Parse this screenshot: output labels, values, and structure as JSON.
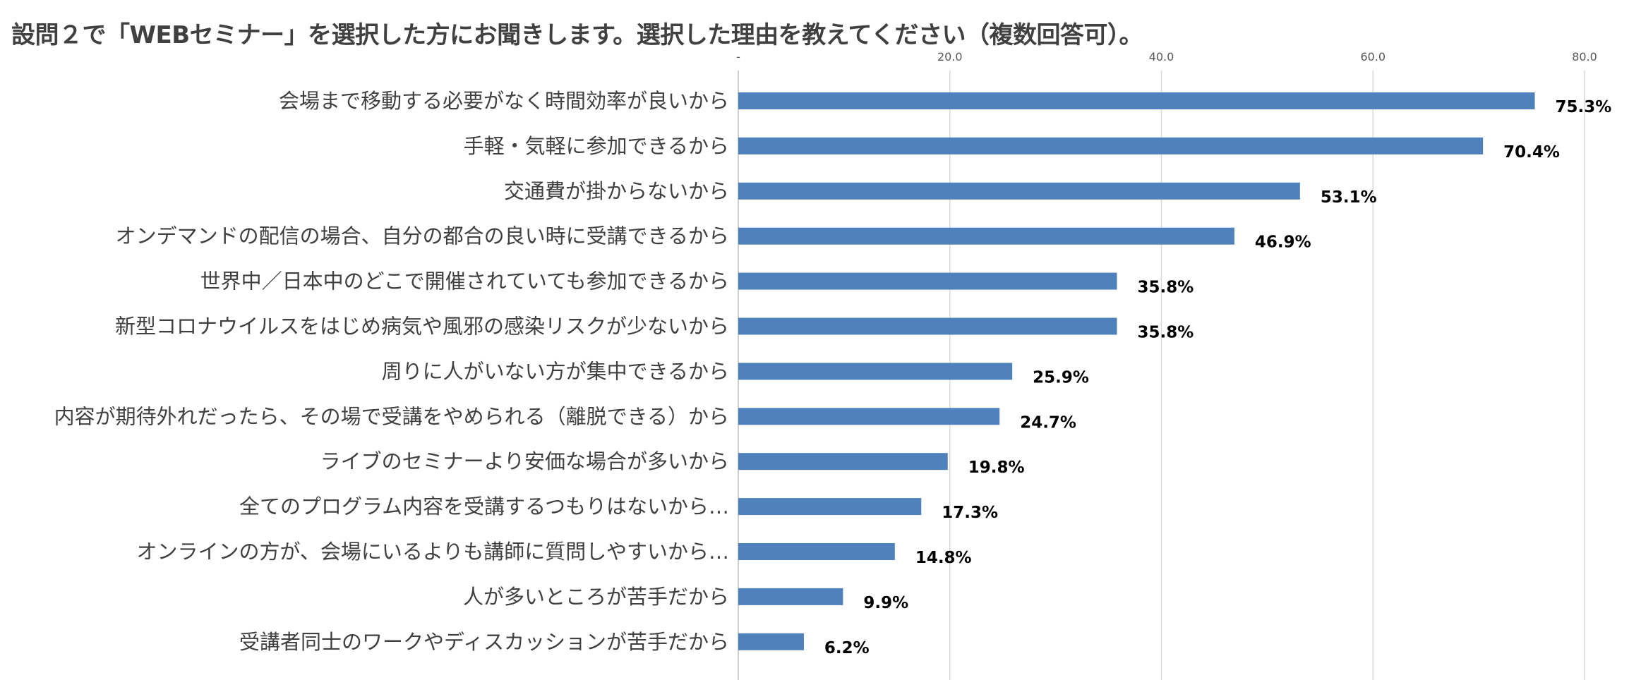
{
  "title": "設問２で「WEBセミナー」を選択した方にお聞きします。選択した理由を教えてください（複数回答可）。",
  "chart_data": {
    "type": "bar",
    "orientation": "horizontal",
    "title": "設問２で「WEBセミナー」を選択した方にお聞きします。選択した理由を教えてください（複数回答可）。",
    "xlabel": "",
    "ylabel": "",
    "xlim": [
      0,
      80
    ],
    "x_ticks": [
      "-",
      "20.0",
      "40.0",
      "60.0",
      "80.0"
    ],
    "x_tick_values": [
      0,
      20,
      40,
      60,
      80
    ],
    "tick_position": "top",
    "grid": true,
    "legend": "none",
    "bar_color": "#4F81BD",
    "categories": [
      "会場まで移動する必要がなく時間効率が良いから",
      "手軽・気軽に参加できるから",
      "交通費が掛からないから",
      "オンデマンドの配信の場合、自分の都合の良い時に受講できるから",
      "世界中／日本中のどこで開催されていても参加できるから",
      "新型コロナウイルスをはじめ病気や風邪の感染リスクが少ないから",
      "周りに人がいない方が集中できるから",
      "内容が期待外れだったら、その場で受講をやめられる（離脱できる）から",
      "ライブのセミナーより安価な場合が多いから",
      "全てのプログラム内容を受講するつもりはないから…",
      "オンラインの方が、会場にいるよりも講師に質問しやすいから…",
      "人が多いところが苦手だから",
      "受講者同士のワークやディスカッションが苦手だから"
    ],
    "values": [
      75.3,
      70.4,
      53.1,
      46.9,
      35.8,
      35.8,
      25.9,
      24.7,
      19.8,
      17.3,
      14.8,
      9.9,
      6.2
    ],
    "data_labels": [
      "75.3%",
      "70.4%",
      "53.1%",
      "46.9%",
      "35.8%",
      "35.8%",
      "25.9%",
      "24.7%",
      "19.8%",
      "17.3%",
      "14.8%",
      "9.9%",
      "6.2%"
    ]
  }
}
